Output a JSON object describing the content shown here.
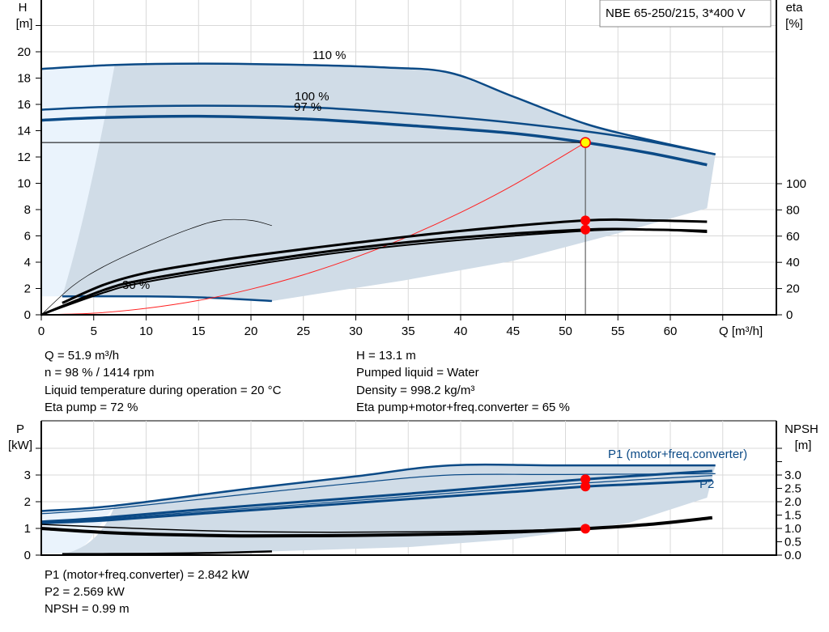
{
  "chart_data": [
    {
      "type": "line",
      "title": "NBE 65-250/215, 3*400 V",
      "xlabel": "Q [m³/h]",
      "ylabel": "H\n[m]",
      "ylabel_line1": "H",
      "ylabel_line2": "[m]",
      "y2label_line1": "eta",
      "y2label_line2": "[%]",
      "xlim": [
        0,
        70
      ],
      "ylim": [
        0,
        24
      ],
      "y2lim": [
        0,
        100
      ],
      "xticks": [
        0,
        5,
        10,
        15,
        20,
        25,
        30,
        35,
        40,
        45,
        50,
        55,
        60
      ],
      "yticks": [
        0,
        2,
        4,
        6,
        8,
        10,
        12,
        14,
        16,
        18,
        20
      ],
      "y2ticks": [
        0,
        20,
        40,
        60,
        80,
        100
      ],
      "grid": true,
      "colors": {
        "curve": "#0b4a86",
        "area": "#d0dce7",
        "area_light": "#eaf3fc",
        "system": "#ff2020",
        "eta": "#000000"
      },
      "series": [
        {
          "name": "110 %",
          "axis": "H",
          "color": "#0b4a86",
          "width": 2.5,
          "x": [
            0,
            7,
            15,
            25,
            33,
            39,
            45,
            52,
            58,
            64.3
          ],
          "y": [
            18.7,
            19.0,
            19.1,
            19.0,
            18.8,
            18.4,
            16.6,
            14.5,
            13.3,
            12.2
          ]
        },
        {
          "name": "100 %",
          "axis": "H",
          "color": "#0b4a86",
          "width": 2.5,
          "x": [
            0,
            6,
            15,
            25,
            35,
            45,
            55,
            64.3
          ],
          "y": [
            15.6,
            15.8,
            15.9,
            15.8,
            15.3,
            14.6,
            13.6,
            12.2
          ]
        },
        {
          "name": "97 %",
          "axis": "H",
          "color": "#0b4a86",
          "width": 3.5,
          "x": [
            0,
            6,
            15,
            25,
            35,
            45,
            51.9,
            58,
            63.5
          ],
          "y": [
            14.8,
            15.0,
            15.1,
            14.9,
            14.4,
            13.8,
            13.1,
            12.3,
            11.4
          ]
        },
        {
          "name": "30 %",
          "axis": "H",
          "color": "#0b4a86",
          "width": 2.5,
          "x": [
            2,
            10,
            16,
            22
          ],
          "y": [
            1.4,
            1.4,
            1.3,
            1.05
          ]
        },
        {
          "axis": "H",
          "type": "system",
          "color": "#ff2020",
          "width": 1,
          "x": [
            0,
            5,
            10,
            15,
            20,
            25,
            30,
            35,
            40,
            45,
            51.9
          ],
          "y": [
            0,
            0.12,
            0.49,
            1.09,
            1.95,
            3.04,
            4.38,
            5.96,
            7.78,
            9.85,
            13.1
          ]
        },
        {
          "axis": "eta",
          "color": "#000",
          "width": 3,
          "x": [
            2,
            6,
            10,
            15,
            20,
            30,
            40,
            51.9,
            58,
            63.5
          ],
          "y": [
            9,
            23,
            32,
            39,
            45,
            55,
            64,
            72,
            72,
            71
          ]
        },
        {
          "axis": "eta",
          "color": "#000",
          "width": 3,
          "x": [
            0,
            6,
            10,
            20,
            30,
            40,
            51.9,
            58,
            63.5
          ],
          "y": [
            0,
            19,
            27,
            40,
            51,
            59,
            65,
            65,
            64
          ]
        },
        {
          "axis": "eta",
          "color": "#000",
          "width": 2,
          "x": [
            0,
            6,
            10,
            20,
            30,
            40,
            51.9,
            58,
            63.5
          ],
          "y": [
            0,
            17,
            25,
            38,
            49,
            57,
            64,
            65,
            63
          ]
        },
        {
          "axis": "eta",
          "color": "#000",
          "width": 0.7,
          "x": [
            0,
            3,
            6,
            10,
            14,
            17,
            20,
            22
          ],
          "y": [
            0,
            22,
            37,
            52,
            65,
            72,
            72,
            68
          ]
        }
      ],
      "operating_point": {
        "Q": 51.9,
        "H": 13.1,
        "eta_pump": 72,
        "eta_total": 65
      },
      "annotations": [
        "110 %",
        "100 %",
        "97 %",
        "30 %"
      ]
    },
    {
      "type": "line",
      "ylabel_line1": "P",
      "ylabel_line2": "[kW]",
      "y2label_line1": "NPSH",
      "y2label_line2": "[m]",
      "xlim": [
        0,
        70
      ],
      "ylim": [
        0,
        5
      ],
      "y2lim": [
        0,
        5
      ],
      "yticks": [
        0,
        1,
        2,
        3
      ],
      "y2ticks": [
        "0.0",
        "0.5",
        "1.0",
        "1.5",
        "2.0",
        "2.5",
        "3.0"
      ],
      "grid": true,
      "series": [
        {
          "name": "P1 (motor+freq.converter)",
          "axis": "P",
          "color": "#0b4a86",
          "width": 2.5,
          "x": [
            0,
            7,
            20,
            30,
            39,
            50,
            64.3
          ],
          "y": [
            1.65,
            1.85,
            2.5,
            2.95,
            3.36,
            3.36,
            3.36
          ]
        },
        {
          "axis": "P",
          "color": "#0b4a86",
          "width": 1.2,
          "x": [
            0,
            7,
            20,
            30,
            39,
            50,
            64.3
          ],
          "y": [
            1.55,
            1.75,
            2.3,
            2.7,
            3.0,
            3.02,
            3.05
          ]
        },
        {
          "axis": "P",
          "color": "#0b4a86",
          "width": 3,
          "x": [
            0,
            6,
            15,
            25,
            35,
            45,
            51.9,
            58,
            64
          ],
          "y": [
            1.25,
            1.4,
            1.7,
            2.0,
            2.3,
            2.62,
            2.842,
            3.0,
            3.15
          ]
        },
        {
          "name": "P2",
          "axis": "P",
          "color": "#0b4a86",
          "width": 3,
          "x": [
            0,
            6,
            15,
            25,
            35,
            45,
            51.9,
            58,
            64
          ],
          "y": [
            1.2,
            1.3,
            1.55,
            1.82,
            2.1,
            2.37,
            2.569,
            2.68,
            2.8
          ]
        },
        {
          "axis": "P",
          "color": "#0b4a86",
          "width": 1.2,
          "x": [
            0,
            6,
            15,
            25,
            35,
            45,
            51.9,
            58,
            64
          ],
          "y": [
            1.22,
            1.35,
            1.62,
            1.9,
            2.2,
            2.5,
            2.7,
            2.85,
            2.98
          ]
        },
        {
          "axis": "NPSH",
          "color": "#000",
          "width": 4,
          "x": [
            0,
            6,
            12,
            20,
            30,
            40,
            46,
            51.9,
            58,
            64
          ],
          "y": [
            1.0,
            0.85,
            0.77,
            0.72,
            0.74,
            0.8,
            0.88,
            0.99,
            1.15,
            1.4
          ]
        },
        {
          "axis": "NPSH",
          "color": "#000",
          "width": 1.5,
          "x": [
            0,
            6,
            15,
            25,
            35,
            45,
            51.9
          ],
          "y": [
            1.15,
            1.05,
            0.92,
            0.86,
            0.87,
            0.92,
            0.99
          ]
        },
        {
          "axis": "NPSH",
          "color": "#000",
          "width": 2.5,
          "x": [
            2,
            10,
            16,
            22
          ],
          "y": [
            0.04,
            0.05,
            0.08,
            0.14
          ]
        }
      ],
      "operating_point": {
        "Q": 51.9,
        "P1": 2.842,
        "P2": 2.569,
        "NPSH": 0.99
      }
    }
  ],
  "readouts": {
    "q": "Q = 51.9 m³/h",
    "n": "n = 98 % / 1414 rpm",
    "liquid_temp": "Liquid temperature during operation = 20 °C",
    "eta_pump": "Eta pump = 72 %",
    "h": "H = 13.1 m",
    "pumped_liquid": "Pumped liquid = Water",
    "density": "Density = 998.2 kg/m³",
    "eta_total": "Eta pump+motor+freq.converter = 65 %",
    "p1": "P1 (motor+freq.converter) = 2.842 kW",
    "p2": "P2 = 2.569 kW",
    "npsh": "NPSH = 0.99 m"
  }
}
